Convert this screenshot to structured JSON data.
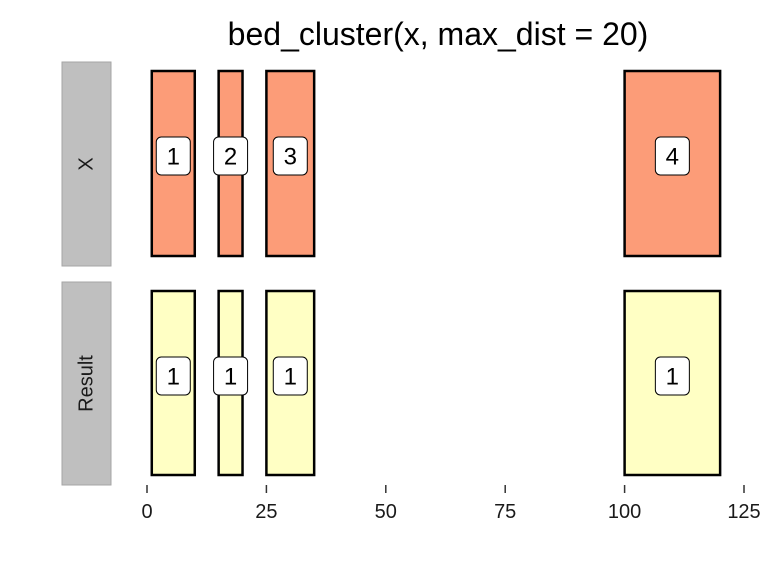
{
  "chart_data": {
    "type": "interval-track",
    "title": "bed_cluster(x, max_dist = 20)",
    "xlabel": "",
    "ylabel": "",
    "xlim": [
      0,
      125
    ],
    "x_ticks": [
      0,
      25,
      50,
      75,
      100,
      125
    ],
    "grid": false,
    "colors": {
      "X": "#fc9c78",
      "Result": "#ffffc4",
      "strip": "#bfbfbf",
      "border": "#000000",
      "label_fill": "#ffffff"
    },
    "panels": [
      {
        "name": "X",
        "intervals": [
          {
            "start": 1,
            "end": 10,
            "label": "1"
          },
          {
            "start": 15,
            "end": 20,
            "label": "2"
          },
          {
            "start": 25,
            "end": 35,
            "label": "3"
          },
          {
            "start": 100,
            "end": 120,
            "label": "4"
          }
        ]
      },
      {
        "name": "Result",
        "intervals": [
          {
            "start": 1,
            "end": 10,
            "label": "1"
          },
          {
            "start": 15,
            "end": 20,
            "label": "1"
          },
          {
            "start": 25,
            "end": 35,
            "label": "1"
          },
          {
            "start": 100,
            "end": 120,
            "label": "1"
          }
        ]
      }
    ]
  }
}
